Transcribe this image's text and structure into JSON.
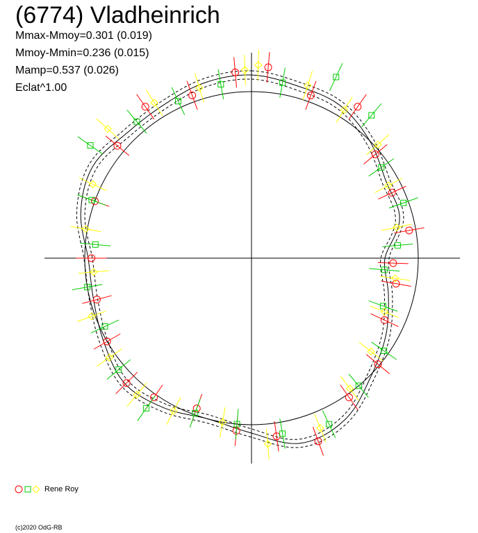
{
  "title": "(6774) Vladheinrich",
  "stats": [
    "Mmax-Mmoy=0.301 (0.019)",
    "Mmoy-Mmin=0.236 (0.015)",
    "Mamp=0.537 (0.026)",
    "Eclat^1.00"
  ],
  "legend": {
    "label": "Rene Roy"
  },
  "copyright": "(c)2020 OdG-RB",
  "colors": {
    "red": "#ff0000",
    "green": "#00cc00",
    "yellow": "#ffff00",
    "axis": "#000000"
  },
  "chart_data": {
    "type": "scatter",
    "polar": true,
    "x_unit": "rotational phase (deg)",
    "y_unit": "relative flux (mean circle = 1.0)",
    "reference_circle": 1.0,
    "shape_curve": {
      "phase_deg": [
        0,
        15,
        30,
        45,
        60,
        75,
        90,
        105,
        120,
        135,
        150,
        165,
        180,
        195,
        210,
        225,
        240,
        255,
        270,
        285,
        300,
        315,
        330,
        345
      ],
      "r": [
        1.1,
        1.07,
        1.06,
        1.0,
        0.93,
        0.92,
        0.8,
        0.85,
        0.93,
        1.01,
        1.12,
        1.15,
        1.05,
        1.0,
        1.04,
        1.07,
        1.02,
        0.98,
        0.98,
        1.06,
        1.1,
        1.06,
        1.06,
        1.09
      ]
    },
    "series": [
      {
        "marker": "circle",
        "color": "red",
        "phase_deg": [
          5,
          20,
          35,
          50,
          65,
          80,
          92,
          100,
          115,
          130,
          145,
          160,
          172,
          185,
          200,
          215,
          225,
          240,
          255,
          270,
          290,
          310,
          325,
          340,
          355
        ],
        "r": [
          1.15,
          1.04,
          1.11,
          0.97,
          0.93,
          0.96,
          0.85,
          0.88,
          0.88,
          0.99,
          1.02,
          1.17,
          1.08,
          1.04,
          0.96,
          1.02,
          1.06,
          1.0,
          0.96,
          0.96,
          1.0,
          1.05,
          1.11,
          1.04,
          1.12
        ]
      },
      {
        "marker": "square",
        "color": "green",
        "phase_deg": [
          10,
          25,
          40,
          55,
          70,
          85,
          95,
          110,
          125,
          140,
          155,
          170,
          185,
          200,
          215,
          230,
          245,
          260,
          275,
          290,
          305,
          320,
          335,
          350
        ],
        "r": [
          1.07,
          1.2,
          1.12,
          0.95,
          0.97,
          0.88,
          0.8,
          0.84,
          0.97,
          1.0,
          1.1,
          1.07,
          1.0,
          0.99,
          1.1,
          1.04,
          0.97,
          1.0,
          0.94,
          1.02,
          1.18,
          1.07,
          1.04,
          1.06
        ]
      },
      {
        "marker": "diamond",
        "color": "yellow",
        "phase_deg": [
          2,
          18,
          32,
          48,
          62,
          78,
          98,
          112,
          128,
          143,
          158,
          175,
          190,
          207,
          220,
          235,
          250,
          265,
          280,
          295,
          312,
          328,
          343,
          358
        ],
        "r": [
          1.16,
          1.09,
          1.05,
          1.02,
          0.93,
          0.89,
          0.87,
          0.86,
          0.91,
          0.98,
          1.1,
          1.12,
          1.0,
          1.03,
          1.07,
          1.04,
          1.02,
          0.95,
          1.01,
          1.05,
          1.16,
          1.1,
          1.07,
          1.13
        ]
      }
    ]
  }
}
